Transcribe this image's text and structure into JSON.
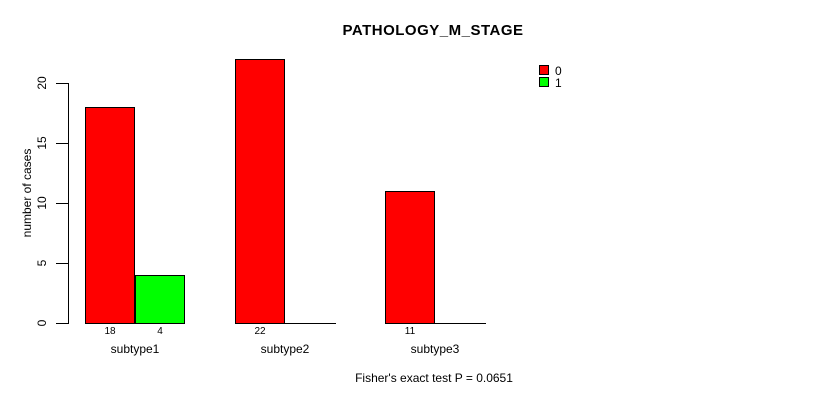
{
  "chart_data": {
    "type": "bar",
    "title": "PATHOLOGY_M_STAGE",
    "ylabel": "number of cases",
    "xlabel": "",
    "footer": "Fisher's exact test P = 0.0651",
    "categories": [
      "subtype1",
      "subtype2",
      "subtype3"
    ],
    "series": [
      {
        "name": "0",
        "color": "#ff0000",
        "values": [
          18,
          22,
          11
        ]
      },
      {
        "name": "1",
        "color": "#00ff00",
        "values": [
          4,
          0,
          0
        ]
      }
    ],
    "bar_value_labels": [
      "18",
      "4",
      "22",
      "11"
    ],
    "yticks": [
      0,
      5,
      10,
      15,
      20
    ],
    "ylim": [
      0,
      22
    ],
    "grid": false,
    "legend_position": "top-right",
    "bar_border_color": "#000000",
    "background_color": "#ffffff"
  }
}
